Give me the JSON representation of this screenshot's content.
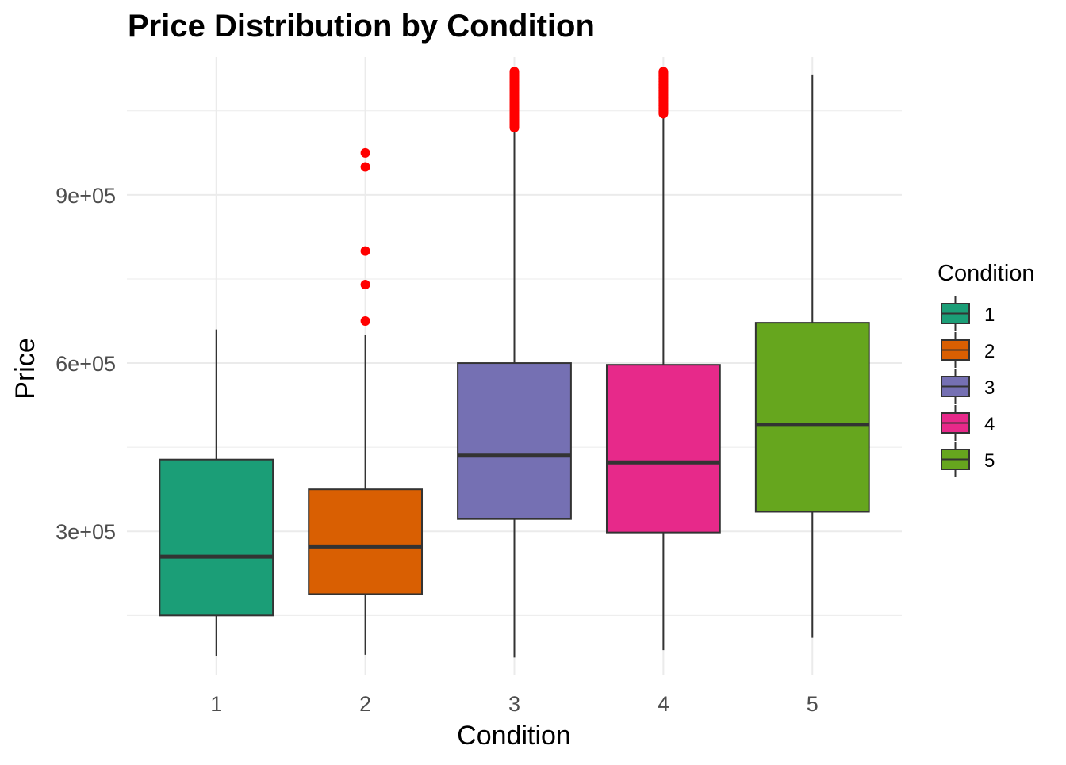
{
  "chart_data": {
    "type": "boxplot",
    "title": "Price Distribution by Condition",
    "xlabel": "Condition",
    "ylabel": "Price",
    "categories": [
      "1",
      "2",
      "3",
      "4",
      "5"
    ],
    "y_ticks": [
      300000,
      600000,
      900000
    ],
    "y_tick_labels": [
      "3e+05",
      "6e+05",
      "9e+05"
    ],
    "ylim": [
      43000,
      1160000
    ],
    "grid": true,
    "legend": {
      "title": "Condition",
      "position": "right",
      "labels": [
        "1",
        "2",
        "3",
        "4",
        "5"
      ]
    },
    "colors": [
      "#1b9e77",
      "#d95f02",
      "#7570b3",
      "#e7298a",
      "#66a61e"
    ],
    "outlier_color": "#ff0000",
    "boxes": [
      {
        "category": "1",
        "lower_whisker": 78000,
        "q1": 150000,
        "median": 255000,
        "q3": 428000,
        "upper_whisker": 660000,
        "outliers": []
      },
      {
        "category": "2",
        "lower_whisker": 80000,
        "q1": 188000,
        "median": 273000,
        "q3": 375000,
        "upper_whisker": 650000,
        "outliers": [
          675000,
          740000,
          800000,
          950000,
          975000
        ]
      },
      {
        "category": "3",
        "lower_whisker": 75000,
        "q1": 322000,
        "median": 435000,
        "q3": 600000,
        "upper_whisker": 1015000,
        "outliers_range": [
          1020000,
          1120000
        ]
      },
      {
        "category": "4",
        "lower_whisker": 88000,
        "q1": 298000,
        "median": 423000,
        "q3": 597000,
        "upper_whisker": 1040000,
        "outliers_range": [
          1045000,
          1120000
        ]
      },
      {
        "category": "5",
        "lower_whisker": 110000,
        "q1": 335000,
        "median": 490000,
        "q3": 672000,
        "upper_whisker": 1115000,
        "outliers": []
      }
    ]
  }
}
